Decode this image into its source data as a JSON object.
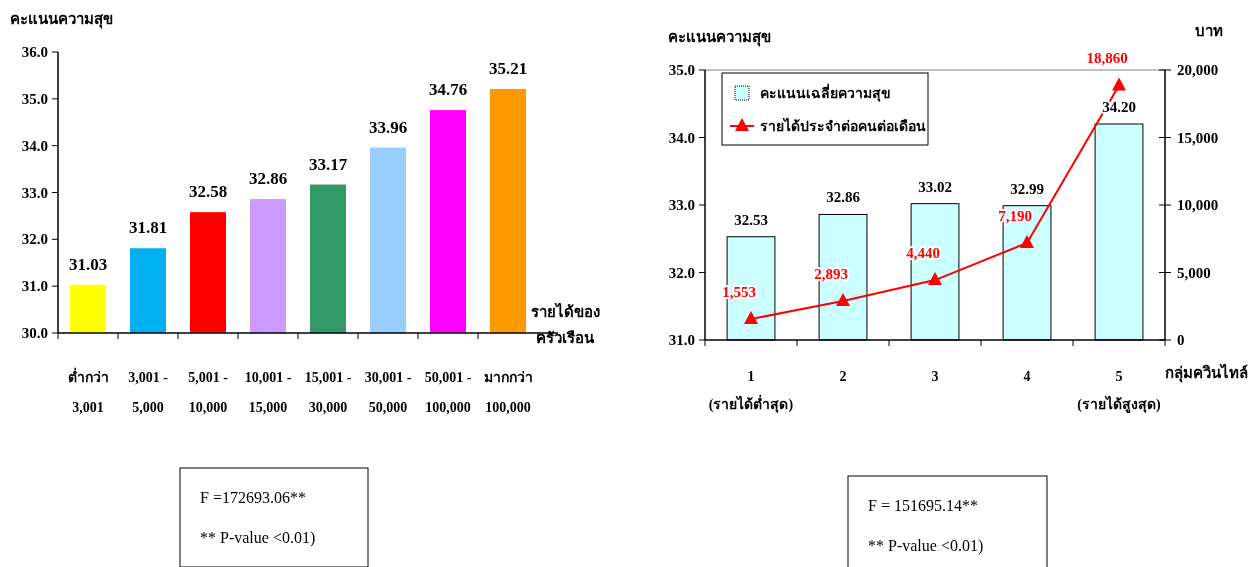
{
  "chart_data": [
    {
      "type": "bar",
      "ylabel": "คะแนนความสุข",
      "xlabel": "รายได้ของ\nครัวเรือน",
      "categories": [
        "ต่ำกว่า\n3,001",
        "3,001 -\n5,000",
        "5,001 -\n10,000",
        "10,001 -\n15,000",
        "15,001 -\n30,000",
        "30,001 -\n50,000",
        "50,001 -\n100,000",
        "มากกว่า\n100,000"
      ],
      "values": [
        31.03,
        31.81,
        32.58,
        32.86,
        33.17,
        33.96,
        34.76,
        35.21
      ],
      "value_labels": [
        "31.03",
        "31.81",
        "32.58",
        "32.86",
        "33.17",
        "33.96",
        "34.76",
        "35.21"
      ],
      "colors": [
        "#ffff00",
        "#00b0f0",
        "#ff0000",
        "#cc99ff",
        "#339966",
        "#99ccff",
        "#ff00ff",
        "#ff9900"
      ],
      "ylim": [
        30,
        36
      ],
      "yticks": [
        {
          "value": 30,
          "label": "30.0"
        },
        {
          "value": 31,
          "label": "31.0"
        },
        {
          "value": 32,
          "label": "32.0"
        },
        {
          "value": 33,
          "label": "33.0"
        },
        {
          "value": 34,
          "label": "34.0"
        },
        {
          "value": 35,
          "label": "35.0"
        },
        {
          "value": 36,
          "label": "36.0"
        }
      ],
      "annotations": [
        "F =172693.06**",
        "** P-value <0.01)"
      ]
    },
    {
      "type": "bar",
      "ylabel": "คะแนนความสุข",
      "y2label": "บาท",
      "xlabel": "กลุ่มควินไทล์",
      "categories": [
        "1\n(รายได้ต่ำสุด)",
        "2",
        "3",
        "4",
        "5\n(รายได้สูงสุด)"
      ],
      "series": [
        {
          "name": "คะแนนเฉลี่ยความสุข",
          "type": "bar",
          "color": "#ccffff",
          "values": [
            32.53,
            32.86,
            33.02,
            32.99,
            34.2
          ],
          "value_labels": [
            "32.53",
            "32.86",
            "33.02",
            "32.99",
            "34.20"
          ]
        },
        {
          "name": "รายได้ประจำต่อคนต่อเดือน",
          "type": "line",
          "axis": "y2",
          "color": "#ff0000",
          "values": [
            1553,
            2893,
            4440,
            7190,
            18860
          ],
          "value_labels": [
            "1,553",
            "2,893",
            "4,440",
            "7,190",
            "18,860"
          ]
        }
      ],
      "marker": "triangle",
      "legend": "top left",
      "ylim": [
        31,
        35
      ],
      "yticks": [
        {
          "value": 31,
          "label": "31.0"
        },
        {
          "value": 32,
          "label": "32.0"
        },
        {
          "value": 33,
          "label": "33.0"
        },
        {
          "value": 34,
          "label": "34.0"
        },
        {
          "value": 35,
          "label": "35.0"
        }
      ],
      "y2lim": [
        0,
        20000
      ],
      "y2ticks": [
        0,
        {
          "value": 5000,
          "label": "5,000"
        },
        {
          "value": 10000,
          "label": "10,000"
        },
        {
          "value": 15000,
          "label": "15,000"
        },
        {
          "value": 20000,
          "label": "20,000"
        }
      ],
      "annotations": [
        "F = 151695.14**",
        "** P-value <0.01)"
      ]
    }
  ]
}
